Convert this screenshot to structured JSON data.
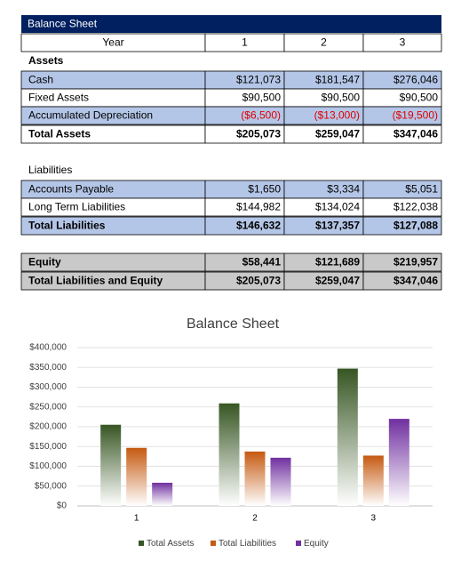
{
  "table": {
    "title": "Balance Sheet",
    "header": [
      "Year",
      "1",
      "2",
      "3"
    ],
    "rows": [
      [
        "Assets"
      ],
      [
        "Cash",
        "$121,073",
        "$181,547",
        "$276,046"
      ],
      [
        "Fixed Assets",
        "$90,500",
        "$90,500",
        "$90,500"
      ],
      [
        "Accumulated Depreciation",
        "($6,500)",
        "($13,000)",
        "($19,500)"
      ],
      [
        "Total Assets",
        "$205,073",
        "$259,047",
        "$347,046"
      ],
      [
        "Liabilities"
      ],
      [
        "Accounts Payable",
        "$1,650",
        "$3,334",
        "$5,051"
      ],
      [
        "Long Term Liabilities",
        "$144,982",
        "$134,024",
        "$122,038"
      ],
      [
        "Total Liabilities",
        "$146,632",
        "$137,357",
        "$127,088"
      ],
      [
        "Equity",
        "$58,441",
        "$121,689",
        "$219,957"
      ],
      [
        "Total Liabilities and Equity",
        "$205,073",
        "$259,047",
        "$347,046"
      ]
    ]
  },
  "chart_data": {
    "type": "bar",
    "title": "Balance Sheet",
    "categories": [
      "1",
      "2",
      "3"
    ],
    "series": [
      {
        "name": "Total Assets",
        "color": "#375623",
        "values": [
          205073,
          259047,
          347046
        ]
      },
      {
        "name": "Total Liabilities",
        "color": "#c55a11",
        "values": [
          146632,
          137357,
          127088
        ]
      },
      {
        "name": "Equity",
        "color": "#7030a0",
        "values": [
          58441,
          121689,
          219957
        ]
      }
    ],
    "ylim": [
      0,
      400000
    ],
    "yticks": [
      {
        "value": 0,
        "label": "$0"
      },
      {
        "value": 50000,
        "label": "$50,000"
      },
      {
        "value": 100000,
        "label": "$100,000"
      },
      {
        "value": 150000,
        "label": "$150,000"
      },
      {
        "value": 200000,
        "label": "$200,000"
      },
      {
        "value": 250000,
        "label": "$250,000"
      },
      {
        "value": 300000,
        "label": "$300,000"
      },
      {
        "value": 350000,
        "label": "$350,000"
      },
      {
        "value": 400000,
        "label": "$400,000"
      }
    ],
    "grid": true,
    "legend": "bottom"
  }
}
